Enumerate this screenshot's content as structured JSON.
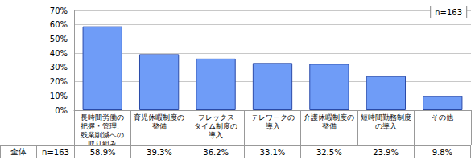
{
  "chart_data": {
    "type": "bar",
    "categories": [
      "長時間労働の\n把握・管理、\n残業削減への\n取り組み",
      "育児休暇制度の\n整備",
      "フレックス\nタイム制度の\n導入",
      "テレワークの\n導入",
      "介護休暇制度の\n整備",
      "短時間勤務制度\nの導入",
      "その他"
    ],
    "values": [
      58.9,
      39.3,
      36.2,
      33.1,
      32.5,
      23.9,
      9.8
    ],
    "value_labels": [
      "58.9%",
      "39.3%",
      "36.2%",
      "33.1%",
      "32.5%",
      "23.9%",
      "9.8%"
    ],
    "color": "#6f9cf7",
    "ylim": [
      0,
      70
    ],
    "yticks": [
      {
        "value": 0,
        "label": "0%"
      },
      {
        "value": 10,
        "label": "10%"
      },
      {
        "value": 20,
        "label": "20%"
      },
      {
        "value": 30,
        "label": "30%"
      },
      {
        "value": 40,
        "label": "40%"
      },
      {
        "value": 50,
        "label": "50%"
      },
      {
        "value": 60,
        "label": "60%"
      },
      {
        "value": 70,
        "label": "70%"
      }
    ],
    "grid": true,
    "annotations": [
      "n=163"
    ],
    "table_row": {
      "label": "全体",
      "n": "n=163"
    }
  }
}
